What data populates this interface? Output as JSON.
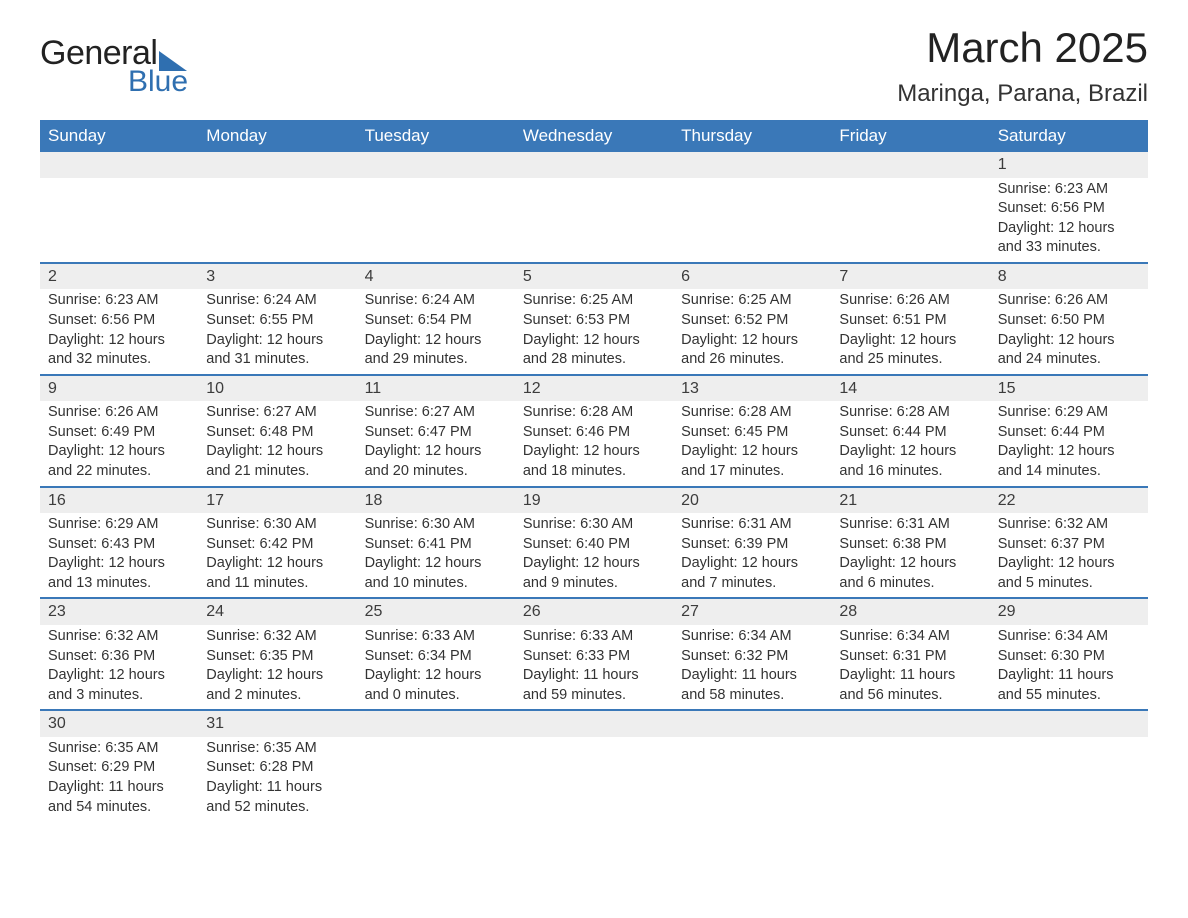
{
  "logo": {
    "line1": "General",
    "line2": "Blue",
    "brand_color": "#2f6fb0"
  },
  "title": {
    "month": "March 2025",
    "location": "Maringa, Parana, Brazil"
  },
  "colors": {
    "header_bg": "#3a78b8",
    "header_text": "#ffffff",
    "daynum_bg": "#eeeeee",
    "row_divider": "#3a78b8",
    "body_text": "#333333"
  },
  "weekdays": [
    "Sunday",
    "Monday",
    "Tuesday",
    "Wednesday",
    "Thursday",
    "Friday",
    "Saturday"
  ],
  "weeks": [
    [
      null,
      null,
      null,
      null,
      null,
      null,
      {
        "day": "1",
        "sunrise": "6:23 AM",
        "sunset": "6:56 PM",
        "daylight": "12 hours and 33 minutes."
      }
    ],
    [
      {
        "day": "2",
        "sunrise": "6:23 AM",
        "sunset": "6:56 PM",
        "daylight": "12 hours and 32 minutes."
      },
      {
        "day": "3",
        "sunrise": "6:24 AM",
        "sunset": "6:55 PM",
        "daylight": "12 hours and 31 minutes."
      },
      {
        "day": "4",
        "sunrise": "6:24 AM",
        "sunset": "6:54 PM",
        "daylight": "12 hours and 29 minutes."
      },
      {
        "day": "5",
        "sunrise": "6:25 AM",
        "sunset": "6:53 PM",
        "daylight": "12 hours and 28 minutes."
      },
      {
        "day": "6",
        "sunrise": "6:25 AM",
        "sunset": "6:52 PM",
        "daylight": "12 hours and 26 minutes."
      },
      {
        "day": "7",
        "sunrise": "6:26 AM",
        "sunset": "6:51 PM",
        "daylight": "12 hours and 25 minutes."
      },
      {
        "day": "8",
        "sunrise": "6:26 AM",
        "sunset": "6:50 PM",
        "daylight": "12 hours and 24 minutes."
      }
    ],
    [
      {
        "day": "9",
        "sunrise": "6:26 AM",
        "sunset": "6:49 PM",
        "daylight": "12 hours and 22 minutes."
      },
      {
        "day": "10",
        "sunrise": "6:27 AM",
        "sunset": "6:48 PM",
        "daylight": "12 hours and 21 minutes."
      },
      {
        "day": "11",
        "sunrise": "6:27 AM",
        "sunset": "6:47 PM",
        "daylight": "12 hours and 20 minutes."
      },
      {
        "day": "12",
        "sunrise": "6:28 AM",
        "sunset": "6:46 PM",
        "daylight": "12 hours and 18 minutes."
      },
      {
        "day": "13",
        "sunrise": "6:28 AM",
        "sunset": "6:45 PM",
        "daylight": "12 hours and 17 minutes."
      },
      {
        "day": "14",
        "sunrise": "6:28 AM",
        "sunset": "6:44 PM",
        "daylight": "12 hours and 16 minutes."
      },
      {
        "day": "15",
        "sunrise": "6:29 AM",
        "sunset": "6:44 PM",
        "daylight": "12 hours and 14 minutes."
      }
    ],
    [
      {
        "day": "16",
        "sunrise": "6:29 AM",
        "sunset": "6:43 PM",
        "daylight": "12 hours and 13 minutes."
      },
      {
        "day": "17",
        "sunrise": "6:30 AM",
        "sunset": "6:42 PM",
        "daylight": "12 hours and 11 minutes."
      },
      {
        "day": "18",
        "sunrise": "6:30 AM",
        "sunset": "6:41 PM",
        "daylight": "12 hours and 10 minutes."
      },
      {
        "day": "19",
        "sunrise": "6:30 AM",
        "sunset": "6:40 PM",
        "daylight": "12 hours and 9 minutes."
      },
      {
        "day": "20",
        "sunrise": "6:31 AM",
        "sunset": "6:39 PM",
        "daylight": "12 hours and 7 minutes."
      },
      {
        "day": "21",
        "sunrise": "6:31 AM",
        "sunset": "6:38 PM",
        "daylight": "12 hours and 6 minutes."
      },
      {
        "day": "22",
        "sunrise": "6:32 AM",
        "sunset": "6:37 PM",
        "daylight": "12 hours and 5 minutes."
      }
    ],
    [
      {
        "day": "23",
        "sunrise": "6:32 AM",
        "sunset": "6:36 PM",
        "daylight": "12 hours and 3 minutes."
      },
      {
        "day": "24",
        "sunrise": "6:32 AM",
        "sunset": "6:35 PM",
        "daylight": "12 hours and 2 minutes."
      },
      {
        "day": "25",
        "sunrise": "6:33 AM",
        "sunset": "6:34 PM",
        "daylight": "12 hours and 0 minutes."
      },
      {
        "day": "26",
        "sunrise": "6:33 AM",
        "sunset": "6:33 PM",
        "daylight": "11 hours and 59 minutes."
      },
      {
        "day": "27",
        "sunrise": "6:34 AM",
        "sunset": "6:32 PM",
        "daylight": "11 hours and 58 minutes."
      },
      {
        "day": "28",
        "sunrise": "6:34 AM",
        "sunset": "6:31 PM",
        "daylight": "11 hours and 56 minutes."
      },
      {
        "day": "29",
        "sunrise": "6:34 AM",
        "sunset": "6:30 PM",
        "daylight": "11 hours and 55 minutes."
      }
    ],
    [
      {
        "day": "30",
        "sunrise": "6:35 AM",
        "sunset": "6:29 PM",
        "daylight": "11 hours and 54 minutes."
      },
      {
        "day": "31",
        "sunrise": "6:35 AM",
        "sunset": "6:28 PM",
        "daylight": "11 hours and 52 minutes."
      },
      null,
      null,
      null,
      null,
      null
    ]
  ],
  "labels": {
    "sunrise": "Sunrise: ",
    "sunset": "Sunset: ",
    "daylight": "Daylight: "
  }
}
